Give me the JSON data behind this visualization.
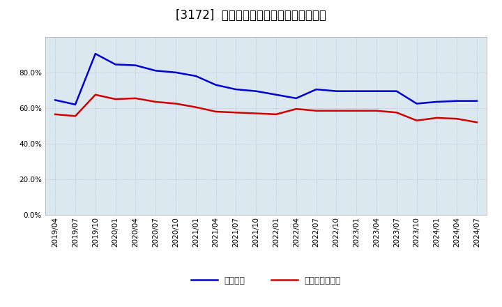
{
  "title": "[3172]  固定比率、固定長期適合率の推移",
  "x_labels": [
    "2019/04",
    "2019/07",
    "2019/10",
    "2020/01",
    "2020/04",
    "2020/07",
    "2020/10",
    "2021/01",
    "2021/04",
    "2021/07",
    "2021/10",
    "2022/01",
    "2022/04",
    "2022/07",
    "2022/10",
    "2023/01",
    "2023/04",
    "2023/07",
    "2023/10",
    "2024/01",
    "2024/04",
    "2024/07"
  ],
  "blue_values": [
    64.5,
    62.0,
    90.5,
    84.5,
    84.0,
    81.0,
    80.0,
    78.0,
    73.0,
    70.5,
    69.5,
    67.5,
    65.5,
    70.5,
    69.5,
    69.5,
    69.5,
    69.5,
    62.5,
    63.5,
    64.0,
    64.0
  ],
  "red_values": [
    56.5,
    55.5,
    67.5,
    65.0,
    65.5,
    63.5,
    62.5,
    60.5,
    58.0,
    57.5,
    57.0,
    56.5,
    59.5,
    58.5,
    58.5,
    58.5,
    58.5,
    57.5,
    53.0,
    54.5,
    54.0,
    52.0
  ],
  "ylim": [
    0,
    100
  ],
  "yticks": [
    0,
    20,
    40,
    60,
    80
  ],
  "blue_color": "#0000cc",
  "red_color": "#cc0000",
  "grid_color": "#b0b8cc",
  "bg_color": "#dce8f0",
  "legend_blue": "固定比率",
  "legend_red": "固定長期適合率",
  "title_fontsize": 12,
  "axis_fontsize": 7.5,
  "legend_fontsize": 9,
  "line_width": 1.8
}
